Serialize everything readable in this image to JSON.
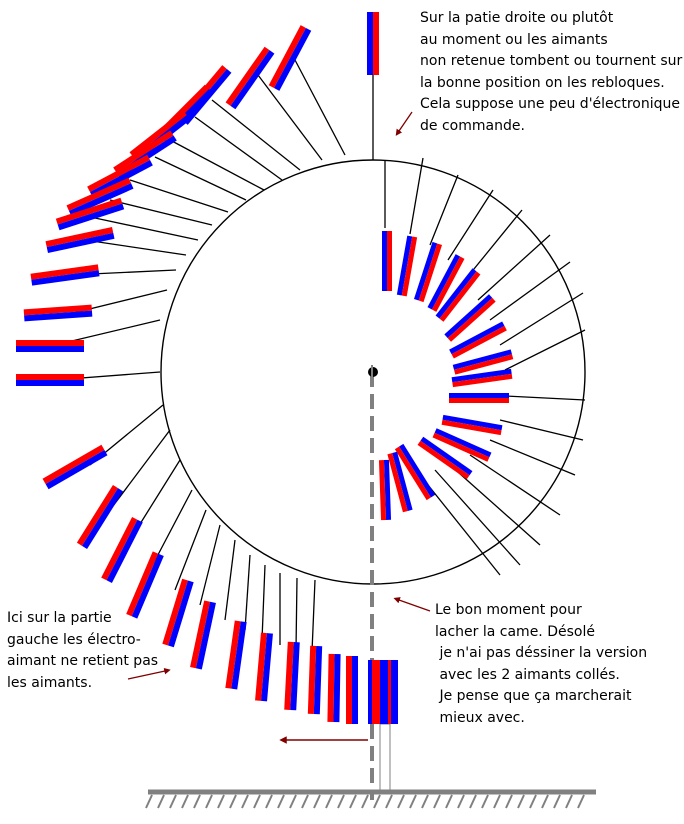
{
  "annotations": {
    "top_right": "Sur la patie droite ou plutôt\nau moment ou les aimants\nnon retenue tombent ou tournent sur\nla bonne position on les rebloques.\nCela suppose une peu d'électronique\nde commande.",
    "bottom_right": "Le bon moment pour\nlacher la came. Désolé\n je n'ai pas déssiner la version\n avec les 2 aimants collés.\n Je pense que ça marcherait\n mieux avec.",
    "bottom_left": "Ici sur la partie\ngauche les électro-\naimant ne retient pas\nles aimants."
  },
  "colors": {
    "magnet_north": "#ff0000",
    "magnet_south": "#0000ff",
    "arrow": "#800000",
    "ground": "#808080",
    "axis": "#808080",
    "line": "#000000"
  }
}
